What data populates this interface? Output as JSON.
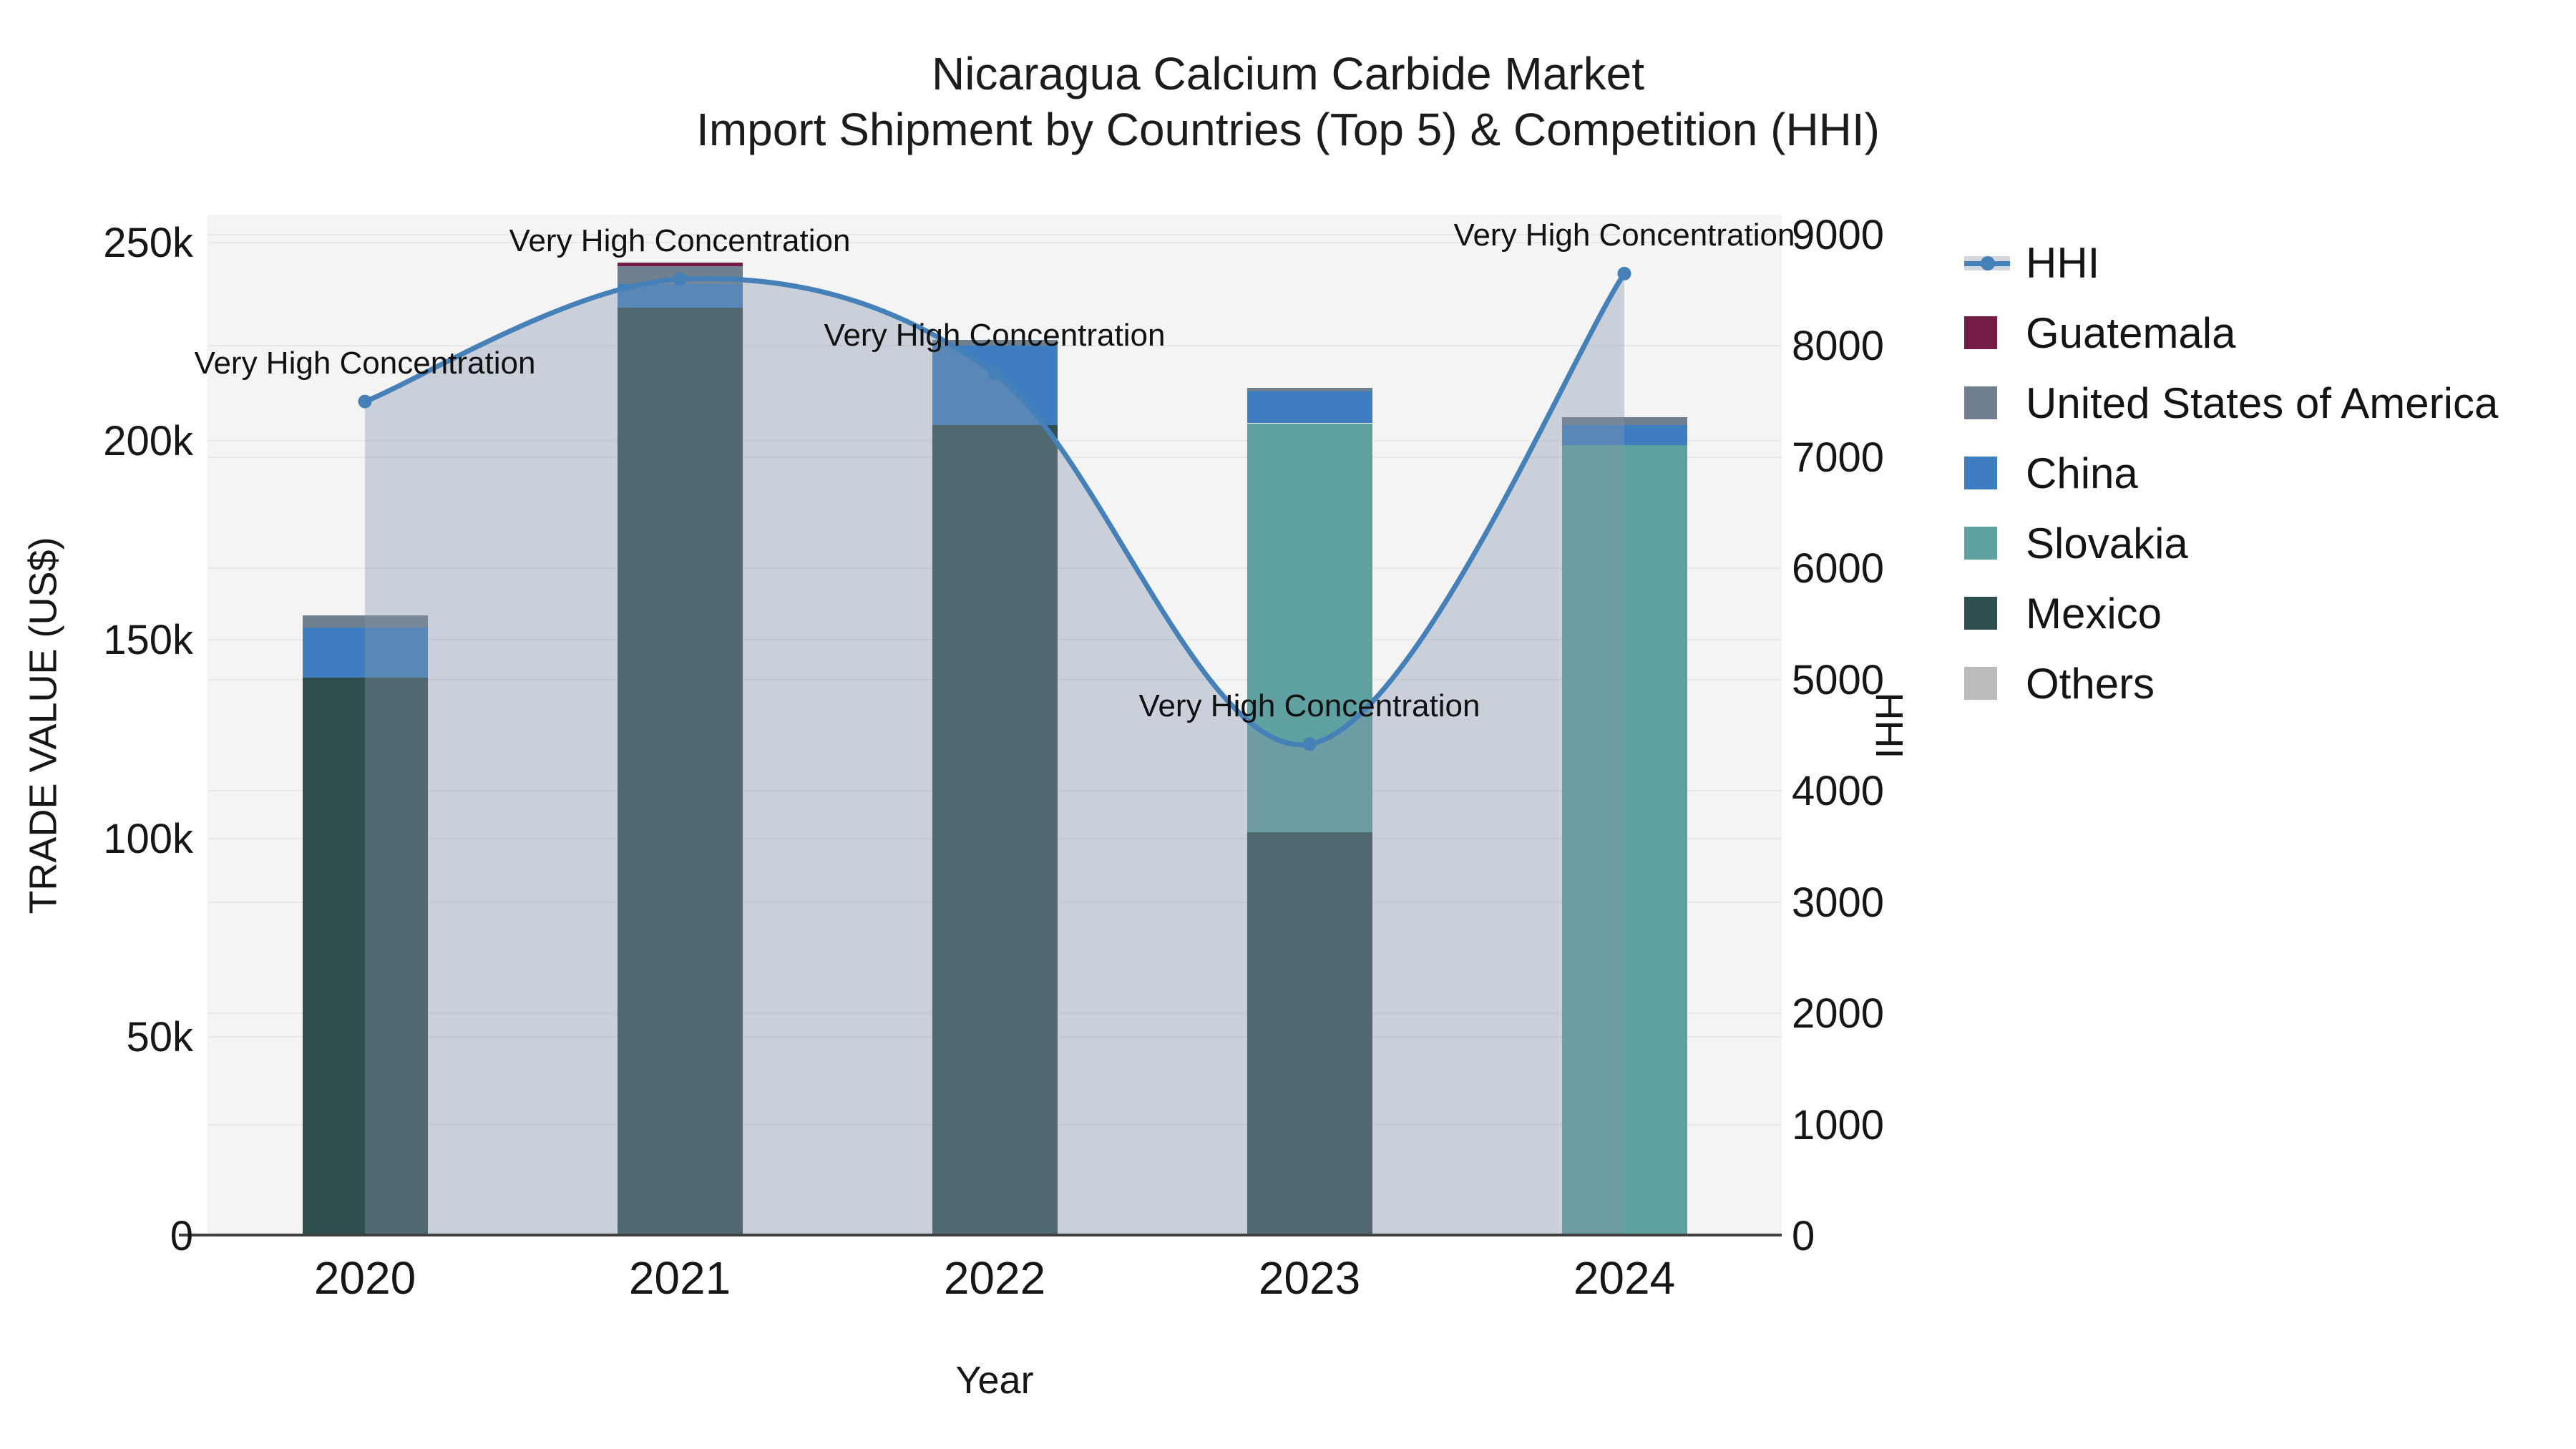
{
  "title": {
    "line1": "Nicaragua Calcium Carbide Market",
    "line2": "Import Shipment by Countries (Top 5) & Competition (HHI)"
  },
  "axes": {
    "y_left": {
      "title": "TRADE VALUE (US$)",
      "ticks": [
        {
          "label": "0",
          "value": 0
        },
        {
          "label": "50k",
          "value": 50000
        },
        {
          "label": "100k",
          "value": 100000
        },
        {
          "label": "150k",
          "value": 150000
        },
        {
          "label": "200k",
          "value": 200000
        },
        {
          "label": "250k",
          "value": 250000
        }
      ],
      "max": 257000
    },
    "y_right": {
      "title": "HHI",
      "ticks": [
        {
          "label": "0",
          "value": 0
        },
        {
          "label": "1000",
          "value": 1000
        },
        {
          "label": "2000",
          "value": 2000
        },
        {
          "label": "3000",
          "value": 3000
        },
        {
          "label": "4000",
          "value": 4000
        },
        {
          "label": "5000",
          "value": 5000
        },
        {
          "label": "6000",
          "value": 6000
        },
        {
          "label": "7000",
          "value": 7000
        },
        {
          "label": "8000",
          "value": 8000
        },
        {
          "label": "9000",
          "value": 9000
        }
      ],
      "max": 9180
    },
    "x": {
      "title": "Year",
      "categories": [
        "2020",
        "2021",
        "2022",
        "2023",
        "2024"
      ]
    }
  },
  "legend": {
    "items": [
      {
        "label": "HHI",
        "type": "line",
        "color": "#4680b8"
      },
      {
        "label": "Guatemala",
        "type": "square",
        "color": "#731c46"
      },
      {
        "label": "United States of America",
        "type": "square",
        "color": "#6e8090"
      },
      {
        "label": "China",
        "type": "square",
        "color": "#3e7ec0"
      },
      {
        "label": "Slovakia",
        "type": "square",
        "color": "#5fa0a0"
      },
      {
        "label": "Mexico",
        "type": "square",
        "color": "#2f4e4e"
      },
      {
        "label": "Others",
        "type": "square",
        "color": "#b9bbbd"
      }
    ]
  },
  "annotation_label": "Very High Concentration",
  "colors": {
    "plot_background": "#f4f4f5",
    "page_background": "#ffffff",
    "gridline": "#e7e8ea",
    "axis_line": "#3f3f3f",
    "hhi_line": "#4680b8",
    "hhi_fill": "rgba(135,150,170,0.38)"
  },
  "chart_data": {
    "type": "bar+line",
    "title": "Nicaragua Calcium Carbide Market — Import Shipment by Countries (Top 5) & Competition (HHI)",
    "xlabel": "Year",
    "ylabel_left": "TRADE VALUE (US$)",
    "ylabel_right": "HHI",
    "ylim_left": [
      0,
      257000
    ],
    "ylim_right": [
      0,
      9180
    ],
    "grid": true,
    "legend_position": "right",
    "categories": [
      "2020",
      "2021",
      "2022",
      "2023",
      "2024"
    ],
    "series": [
      {
        "name": "Mexico",
        "type": "bar",
        "color": "#2f4e4e",
        "values": [
          140500,
          233500,
          204000,
          101500,
          0
        ]
      },
      {
        "name": "Slovakia",
        "type": "bar",
        "color": "#5fa0a0",
        "values": [
          0,
          0,
          0,
          103000,
          199000
        ]
      },
      {
        "name": "China",
        "type": "bar",
        "color": "#3e7ec0",
        "values": [
          12500,
          6000,
          20000,
          8000,
          5000
        ]
      },
      {
        "name": "United States of America",
        "type": "bar",
        "color": "#6e8090",
        "values": [
          3200,
          4500,
          1500,
          1000,
          2000
        ]
      },
      {
        "name": "Guatemala",
        "type": "bar",
        "color": "#731c46",
        "values": [
          0,
          1000,
          0,
          0,
          0
        ]
      },
      {
        "name": "Others",
        "type": "bar",
        "color": "#b9bbbd",
        "values": [
          0,
          0,
          0,
          0,
          0
        ]
      }
    ],
    "bar_totals": [
      156200,
      245000,
      225500,
      213500,
      206000
    ],
    "line_series": {
      "name": "HHI",
      "color": "#4680b8",
      "fill": "rgba(135,150,170,0.38)",
      "values": [
        7500,
        8600,
        7750,
        4420,
        8650
      ],
      "annotations": [
        "Very High Concentration",
        "Very High Concentration",
        "Very High Concentration",
        "Very High Concentration",
        "Very High Concentration"
      ]
    }
  }
}
